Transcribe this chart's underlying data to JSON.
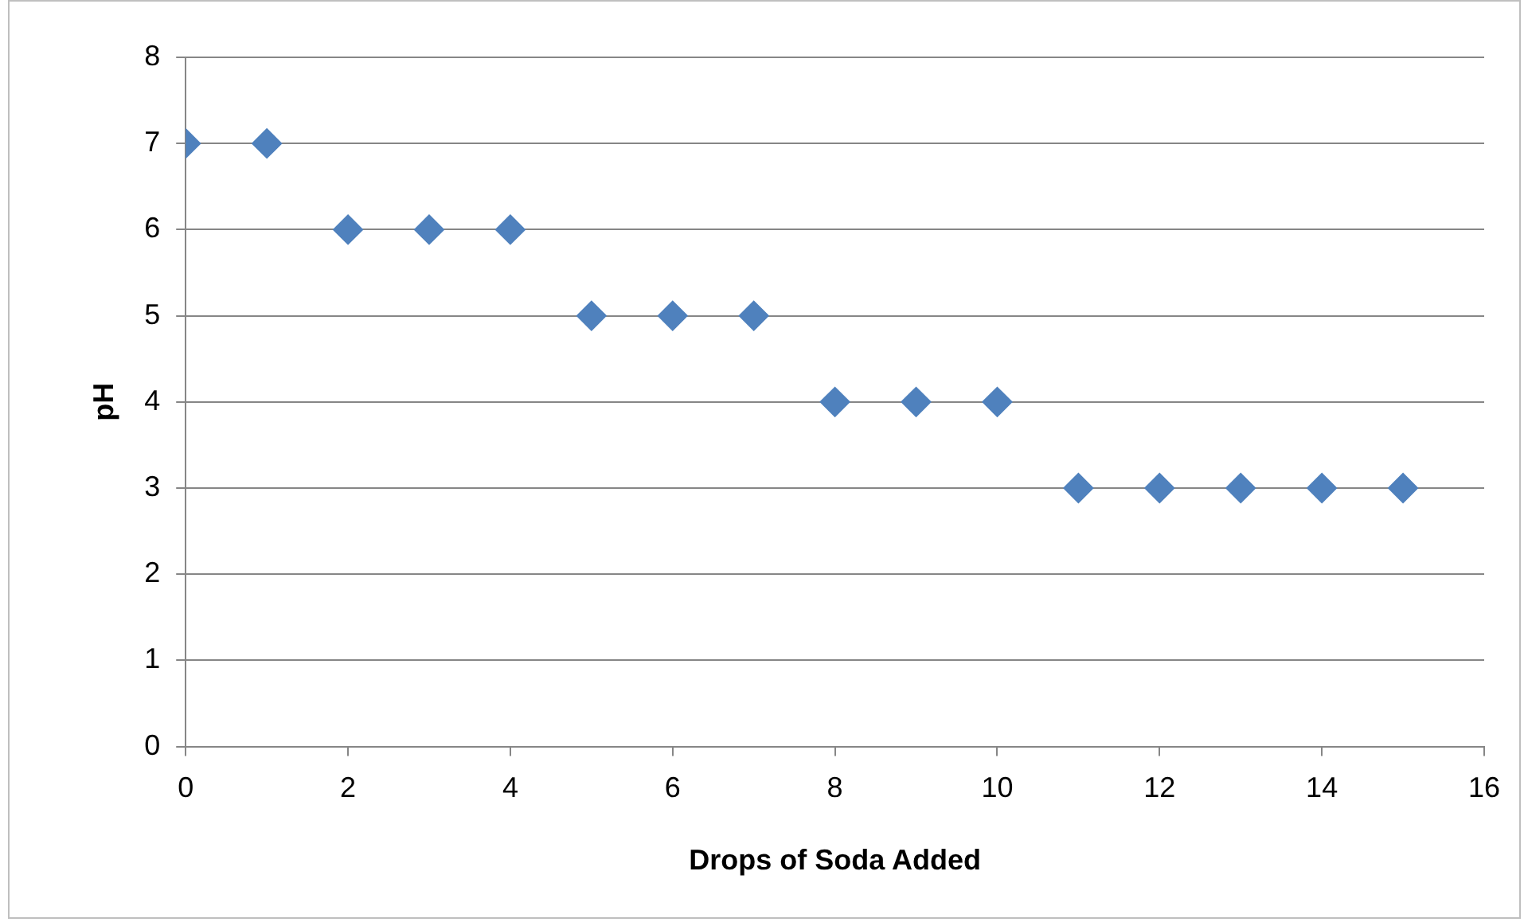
{
  "chart_data": {
    "type": "scatter",
    "xlabel": "Drops of Soda Added",
    "ylabel": "pH",
    "x": [
      0,
      1,
      2,
      3,
      4,
      5,
      6,
      7,
      8,
      9,
      10,
      11,
      12,
      13,
      14,
      15
    ],
    "series": [
      {
        "color": "#4f81bd",
        "values": [
          7,
          7,
          6,
          6,
          6,
          5,
          5,
          5,
          4,
          4,
          4,
          3,
          3,
          3,
          3,
          3
        ]
      }
    ],
    "xlim": [
      0,
      16
    ],
    "xticks": [
      0,
      2,
      4,
      6,
      8,
      10,
      12,
      14,
      16
    ],
    "ylim": [
      0,
      8
    ],
    "yticks": [
      0,
      1,
      2,
      3,
      4,
      5,
      6,
      7,
      8
    ],
    "grid": "y",
    "legend": false,
    "marker": "diamond"
  }
}
